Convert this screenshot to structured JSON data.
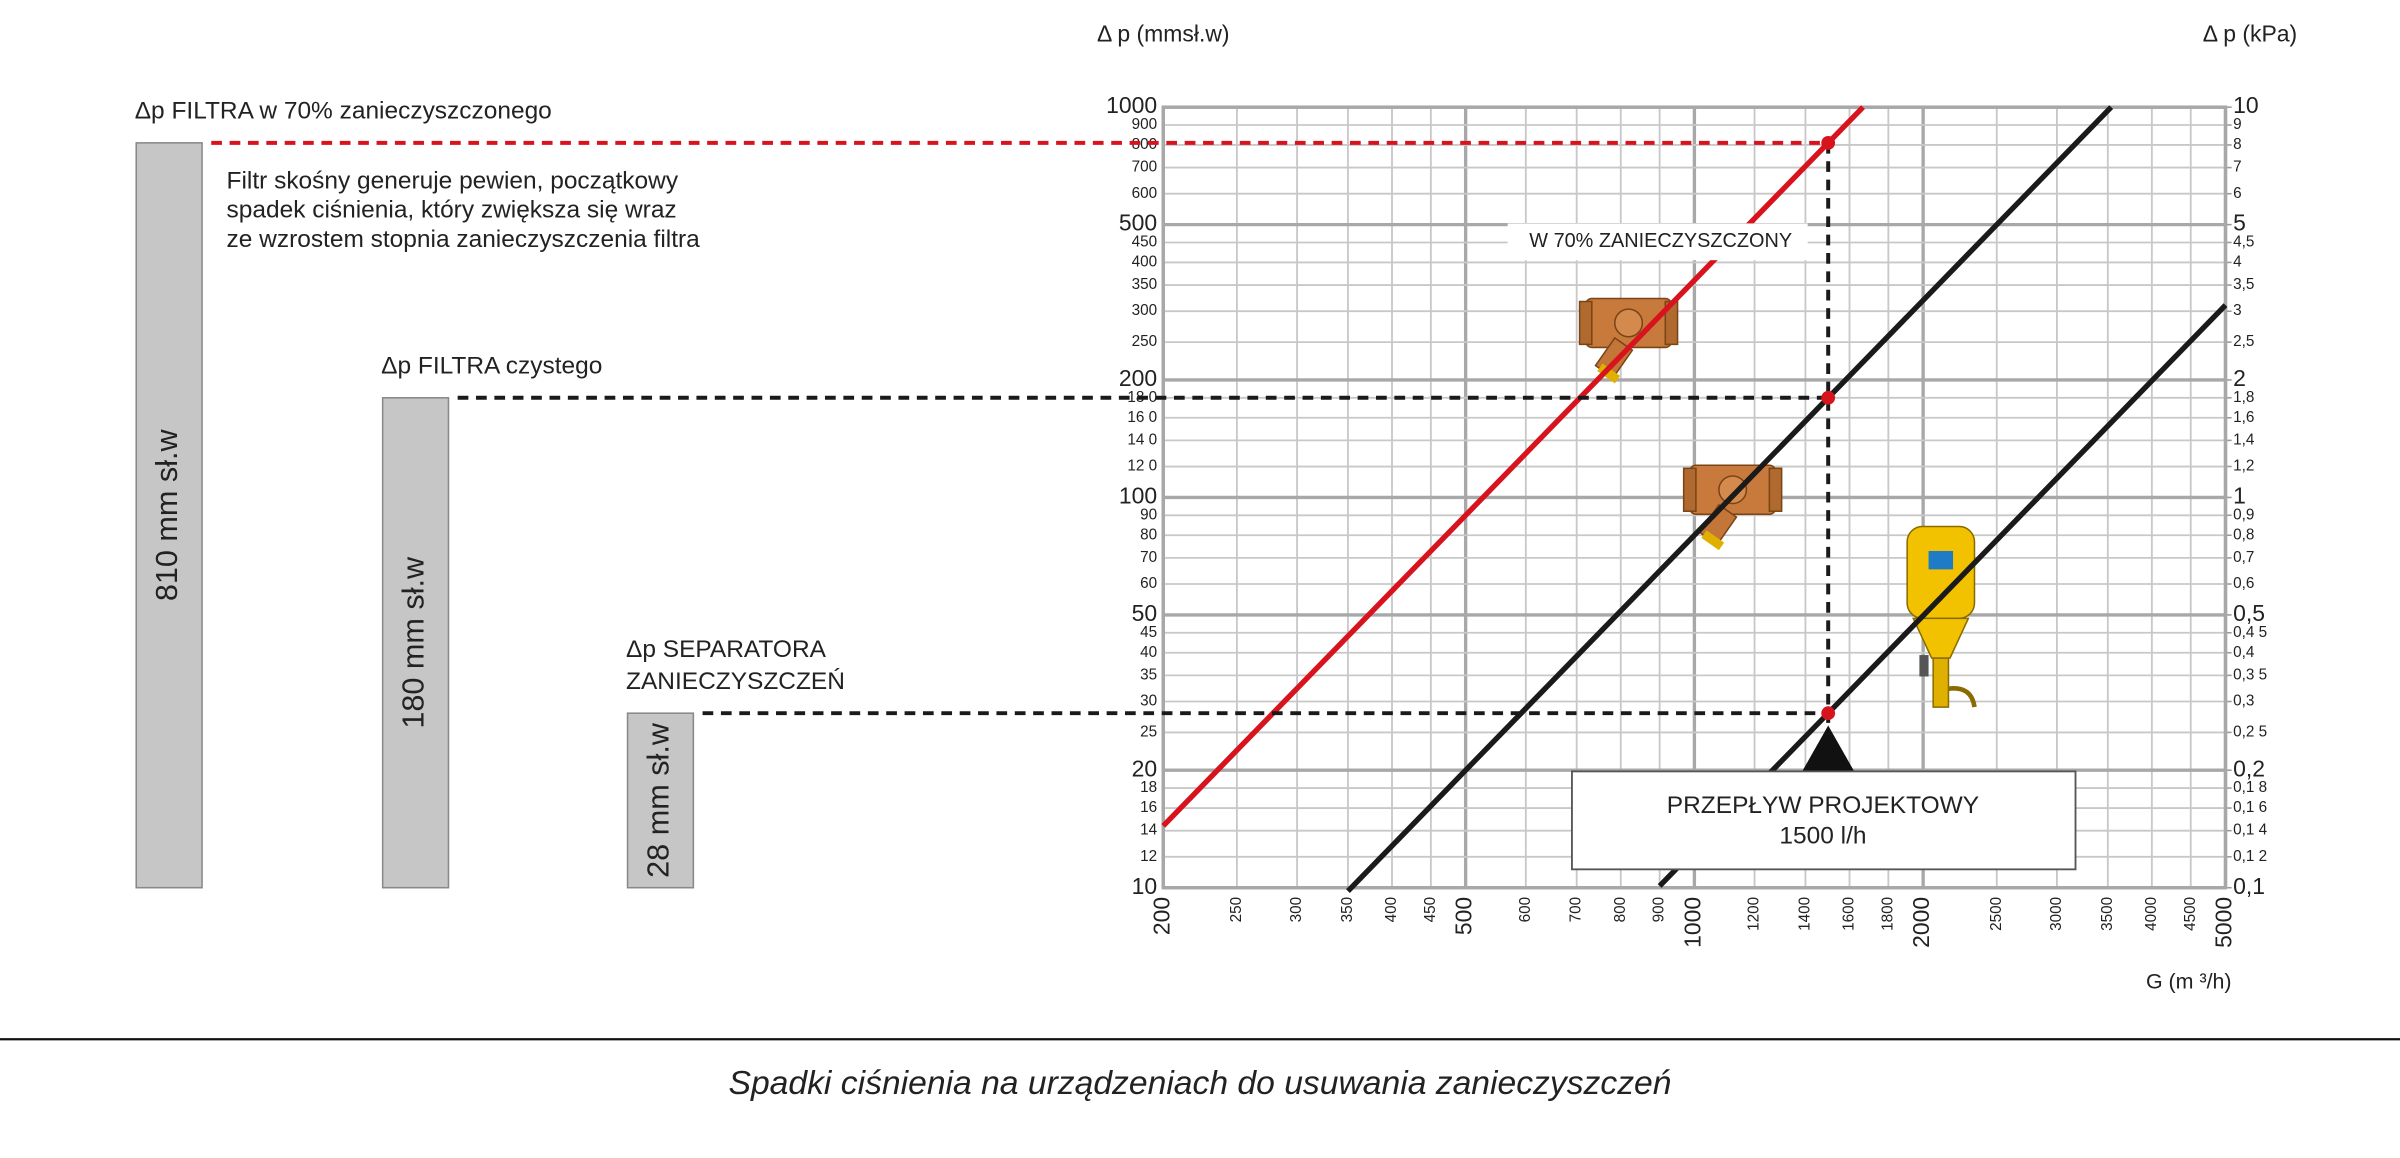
{
  "chart_data": {
    "type": "line",
    "log_x": true,
    "log_y": true,
    "y_label": "Δ p (mmsł.w)",
    "y2_label": "Δ p (kPa)",
    "x_label": "G (m ³/h)",
    "xlim": [
      200,
      5000
    ],
    "xticks": [
      200,
      250,
      300,
      350,
      400,
      450,
      500,
      600,
      700,
      800,
      900,
      1000,
      1200,
      1400,
      1600,
      1800,
      2000,
      2500,
      3000,
      3500,
      4000,
      4500,
      5000
    ],
    "ylim": [
      10,
      1000
    ],
    "yticks": [
      10,
      12,
      14,
      16,
      18,
      20,
      25,
      30,
      35,
      40,
      45,
      50,
      60,
      70,
      80,
      90,
      100,
      {
        "value": 120,
        "label": "12 0"
      },
      {
        "value": 140,
        "label": "14 0"
      },
      {
        "value": 160,
        "label": "16 0"
      },
      {
        "value": 180,
        "label": "18 0"
      },
      200,
      250,
      300,
      350,
      400,
      450,
      500,
      600,
      700,
      800,
      900,
      1000
    ],
    "y2lim": [
      0.1,
      10
    ],
    "y2ticks": [
      {
        "value": 0.1,
        "label": "0,1"
      },
      {
        "value": 0.12,
        "label": "0,1 2"
      },
      {
        "value": 0.14,
        "label": "0,1 4"
      },
      {
        "value": 0.16,
        "label": "0,1 6"
      },
      {
        "value": 0.18,
        "label": "0,1 8"
      },
      {
        "value": 0.2,
        "label": "0,2"
      },
      {
        "value": 0.25,
        "label": "0,2 5"
      },
      {
        "value": 0.3,
        "label": "0,3"
      },
      {
        "value": 0.35,
        "label": "0,3 5"
      },
      {
        "value": 0.4,
        "label": "0,4"
      },
      {
        "value": 0.45,
        "label": "0,4 5"
      },
      {
        "value": 0.5,
        "label": "0,5"
      },
      {
        "value": 0.6,
        "label": "0,6"
      },
      {
        "value": 0.7,
        "label": "0,7"
      },
      {
        "value": 0.8,
        "label": "0,8"
      },
      {
        "value": 0.9,
        "label": "0,9"
      },
      1,
      {
        "value": 1.2,
        "label": "1,2"
      },
      {
        "value": 1.4,
        "label": "1,4"
      },
      {
        "value": 1.6,
        "label": "1,6"
      },
      {
        "value": 1.8,
        "label": "1,8"
      },
      2,
      {
        "value": 2.5,
        "label": "2,5"
      },
      3,
      {
        "value": 3.5,
        "label": "3,5"
      },
      4,
      {
        "value": 4.5,
        "label": "4,5"
      },
      5,
      6,
      7,
      8,
      9,
      10
    ],
    "grid": true,
    "series": [
      {
        "color": "#d7141e",
        "x": [
          200,
          1500,
          1667
        ],
        "values": [
          14.4,
          810,
          1000
        ]
      },
      {
        "color": "#1a1a1a",
        "x": [
          350,
          1500,
          3536
        ],
        "values": [
          9.8,
          180,
          1000
        ]
      },
      {
        "color": "#1a1a1a",
        "x": [
          900,
          1500,
          5000
        ],
        "values": [
          10.1,
          28,
          311
        ]
      }
    ],
    "level_markers": [
      {
        "title": [
          "Δp FILTRA w 70% zanieczyszczonego"
        ],
        "bar_label": "810 mm sł.w",
        "value": 810,
        "color": "#d7141e"
      },
      {
        "title": [
          "Δp FILTRA czystego"
        ],
        "bar_label": "180 mm sł.w",
        "value": 180,
        "color": "#1a1a1a"
      },
      {
        "title": [
          "Δp SEPARATORA",
          "ZANIECZYSZCZEŃ"
        ],
        "bar_label": "28 mm sł.w",
        "value": 28,
        "color": "#1a1a1a"
      }
    ],
    "note": [
      "Filtr skośny generuje pewien, początkowy",
      "spadek ciśnienia, który zwiększa się wraz",
      "ze wzrostem stopnia zanieczyszczenia filtra"
    ],
    "curve_label": "W 70% ZANIECZYSZCZONY",
    "design_flow": {
      "value": 1500,
      "title": "PRZEPŁYW PROJEKTOWY",
      "label": "1500 l/h"
    },
    "caption": "Spadki ciśnienia na urządzeniach do usuwania zanieczyszczeń"
  }
}
